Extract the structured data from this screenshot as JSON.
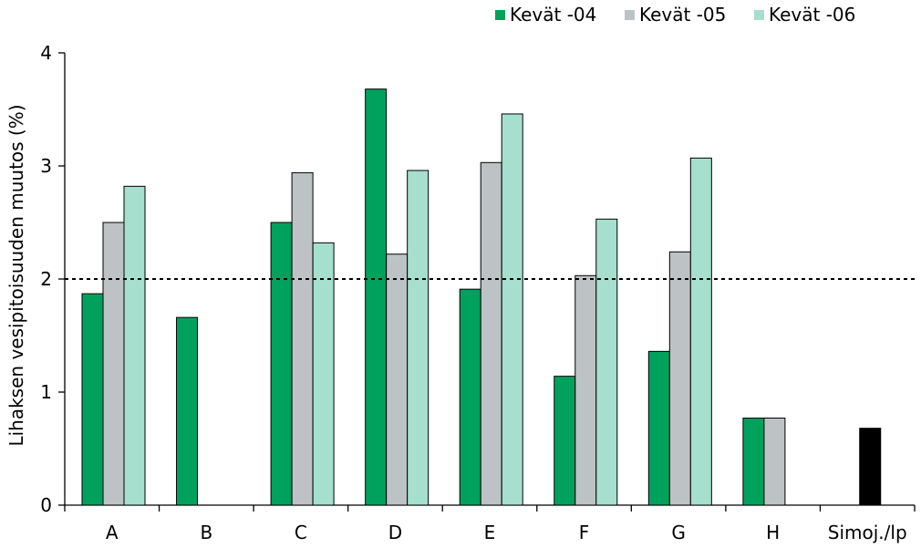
{
  "chart_data": {
    "type": "bar",
    "title": "",
    "xlabel": "",
    "ylabel": "Lihaksen vesipitoisuuden muutos (%)",
    "ylim": [
      0,
      4
    ],
    "yticks": [
      0,
      1,
      2,
      3,
      4
    ],
    "grid": false,
    "legend_position": "top",
    "reference_line": {
      "value": 2,
      "style": "dotted"
    },
    "categories": [
      "A",
      "B",
      "C",
      "D",
      "E",
      "F",
      "G",
      "H",
      "Simoj./lp"
    ],
    "series": [
      {
        "name": "Kevät -04",
        "color": "#00a15d",
        "values": [
          1.87,
          1.66,
          2.5,
          3.68,
          1.91,
          1.14,
          1.36,
          0.77,
          null
        ]
      },
      {
        "name": "Kevät -05",
        "color": "#bdc3c5",
        "values": [
          2.5,
          null,
          2.94,
          2.22,
          3.03,
          2.03,
          2.24,
          0.77,
          null
        ]
      },
      {
        "name": "Kevät -06",
        "color": "#a6dfcd",
        "values": [
          2.82,
          null,
          2.32,
          2.96,
          3.46,
          2.53,
          3.07,
          null,
          null
        ]
      }
    ],
    "extra_bars": [
      {
        "category": "Simoj./lp",
        "value": 0.68,
        "color": "#000000"
      }
    ]
  }
}
